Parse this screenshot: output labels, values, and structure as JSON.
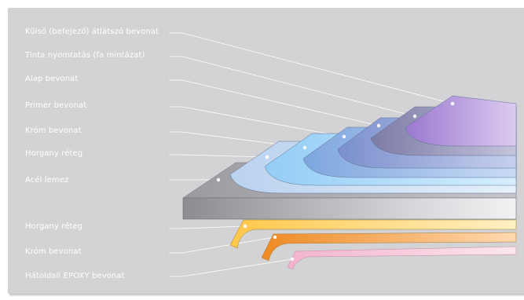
{
  "labels_top": [
    "Külső (befejező) átlátszó bevonat",
    "Tinta nyomtatás (fa mintázat)",
    "Alap bevonat",
    "Primer bevonat",
    "Króm bevonat",
    "Horgany réteg",
    "Acél lemez"
  ],
  "labels_bottom": [
    "Horgany réteg",
    "Króm bevonat",
    "Hátoldali EPOXY bevonat"
  ],
  "colors": {
    "background": "#d3d3d6",
    "steel": "#a8a8ad",
    "zinc": "#c5dcf3",
    "chrome": "#a8dcff",
    "primer": "#8eb4e6",
    "base": "#8fa3d6",
    "ink": "#8f8fb8",
    "clear": "#a98bd6",
    "back_zinc": "#ffd36b",
    "back_chrome": "#f29a3a",
    "back_epoxy": "#f6c4d8"
  }
}
